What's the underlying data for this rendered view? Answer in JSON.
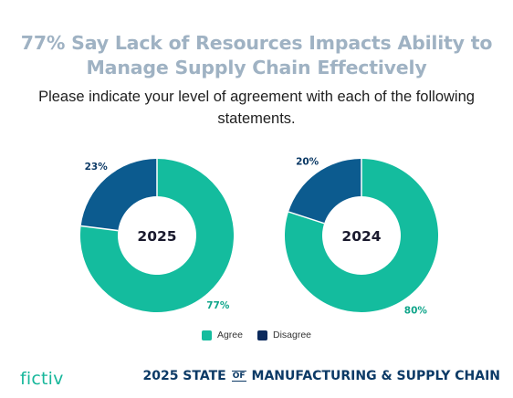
{
  "title": {
    "line1": "77% Say Lack of Resources Impacts Ability to",
    "line2": "Manage Supply Chain Effectively"
  },
  "subtitle": {
    "line1": "Please indicate your level of agreement with each of the following",
    "line2": "statements."
  },
  "colors": {
    "agree": "#14bc9e",
    "disagree": "#0c5b8f",
    "legend_disagree": "#0b2a5c",
    "title": "#9fb2c3"
  },
  "chart_data": [
    {
      "type": "pie",
      "center_label": "2025",
      "slices": [
        {
          "name": "Agree",
          "value": 77,
          "label": "77%"
        },
        {
          "name": "Disagree",
          "value": 23,
          "label": "23%"
        }
      ]
    },
    {
      "type": "pie",
      "center_label": "2024",
      "slices": [
        {
          "name": "Agree",
          "value": 80,
          "label": "80%"
        },
        {
          "name": "Disagree",
          "value": 20,
          "label": "20%"
        }
      ]
    }
  ],
  "legend": {
    "agree": "Agree",
    "disagree": "Disagree"
  },
  "footer": {
    "logo": "fictiv",
    "prefix": "2025 STATE",
    "of": "OF",
    "suffix": "MANUFACTURING & SUPPLY CHAIN"
  }
}
